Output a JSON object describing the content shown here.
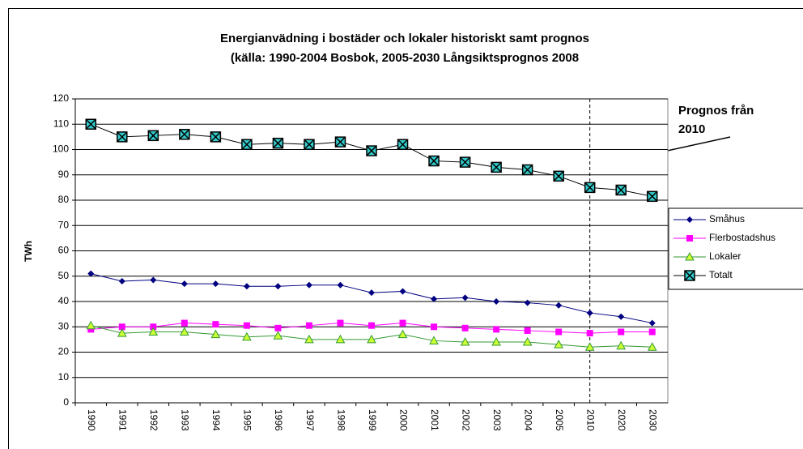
{
  "chart_data": {
    "type": "line",
    "title": "Energianvädning i bostäder och lokaler historiskt samt prognos",
    "subtitle": "(källa: 1990-2004 Bosbok, 2005-2030 Långsiktsprognos 2008",
    "y_label": "TWh",
    "annotation": [
      "Prognos från",
      "2010"
    ],
    "categories": [
      "1990",
      "1991",
      "1992",
      "1993",
      "1994",
      "1995",
      "1996",
      "1997",
      "1998",
      "1999",
      "2000",
      "2001",
      "2002",
      "2003",
      "2004",
      "2005",
      "2010",
      "2020",
      "2030"
    ],
    "series": [
      {
        "name": "Småhus",
        "color": "#000080",
        "marker": "diamond",
        "values": [
          51,
          48,
          48.5,
          47,
          47,
          46,
          46,
          46.5,
          46.5,
          43.5,
          44,
          41,
          41.5,
          40,
          39.5,
          38.5,
          35.5,
          34,
          31.5
        ]
      },
      {
        "name": "Flerbostadshus",
        "color": "#ff00ff",
        "marker": "square",
        "values": [
          29,
          30,
          30,
          31.5,
          31,
          30.5,
          29.5,
          30.5,
          31.5,
          30.5,
          31.5,
          30,
          29.5,
          29,
          28.5,
          28,
          27.5,
          28,
          28
        ]
      },
      {
        "name": "Lokaler",
        "color": "#339933",
        "marker": "triangle",
        "values": [
          30.5,
          27.5,
          28,
          28,
          27,
          26,
          26.5,
          25,
          25,
          25,
          27,
          24.5,
          24,
          24,
          24,
          23,
          22,
          22.5,
          22
        ]
      },
      {
        "name": "Totalt",
        "color": "#000000",
        "marker": "xsquare",
        "values": [
          110,
          105,
          105.5,
          106,
          105,
          102,
          102.5,
          102,
          103,
          99.5,
          102,
          95.5,
          95,
          93,
          92,
          89.5,
          85,
          84,
          81.5
        ]
      }
    ],
    "ylim": [
      0,
      120
    ],
    "yticks": [
      0,
      10,
      20,
      30,
      40,
      50,
      60,
      70,
      80,
      90,
      100,
      110,
      120
    ],
    "grid": true,
    "forecast_from": "2010",
    "legend": "right"
  }
}
